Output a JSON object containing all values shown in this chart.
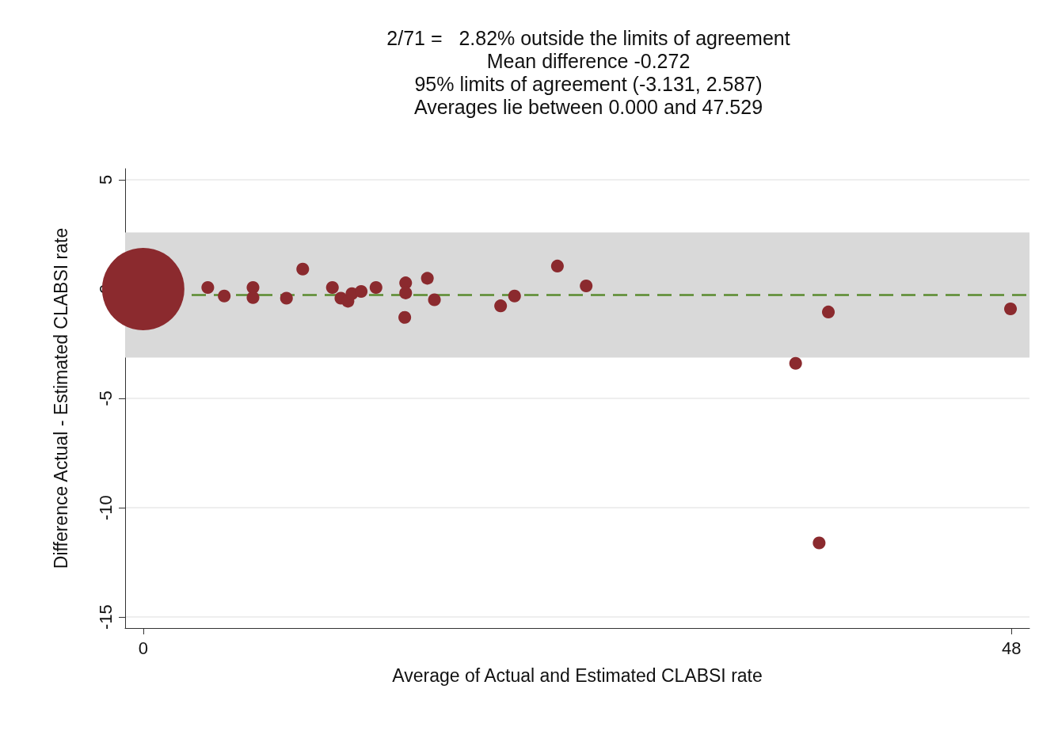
{
  "chart_data": {
    "type": "bubble",
    "title": "2/71 =   2.82% outside the limits of agreement\nMean difference -0.272\n95% limits of agreement (-3.131, 2.587)\nAverages lie between 0.000 and 47.529",
    "xlabel": "Average of Actual and Estimated CLABSI rate",
    "ylabel": "Difference Actual - Estimated CLABSI rate",
    "x": [
      0,
      3.57,
      4.48,
      6.07,
      6.07,
      7.92,
      8.82,
      10.46,
      10.93,
      11.32,
      11.54,
      12.05,
      12.87,
      14.51,
      14.51,
      14.46,
      15.71,
      16.1,
      19.76,
      20.53,
      22.9,
      24.49,
      36.07,
      37.88,
      37.37,
      47.95
    ],
    "series": [
      {
        "color": "#8b2a2e",
        "values": [
          0,
          0.07,
          -0.32,
          0.07,
          -0.39,
          -0.42,
          0.91,
          0.07,
          -0.42,
          -0.56,
          -0.21,
          -0.11,
          0.07,
          0.28,
          -0.18,
          -1.3,
          0.49,
          -0.49,
          -0.77,
          -0.32,
          1.05,
          0.14,
          -3.4,
          -1.05,
          -11.61,
          -0.91
        ],
        "sizes": [
          1,
          0.024,
          0.024,
          0.024,
          0.024,
          0.024,
          0.024,
          0.024,
          0.024,
          0.024,
          0.024,
          0.024,
          0.024,
          0.024,
          0.024,
          0.024,
          0.024,
          0.024,
          0.024,
          0.024,
          0.024,
          0.024,
          0.024,
          0.024,
          0.024,
          0.024
        ]
      }
    ],
    "xlim": [
      -1,
      49
    ],
    "xticks": [
      0,
      48
    ],
    "ylim": [
      -15.5,
      5.5
    ],
    "yticks": [
      -15,
      -10,
      -5,
      0,
      5
    ],
    "bands": [
      {
        "axis": "y",
        "from": -3.131,
        "to": 2.587,
        "color": "#d9d9d9"
      }
    ],
    "ref_lines": [
      {
        "axis": "y",
        "value": -0.272,
        "color": "#5a8a2f",
        "line_style": "dashed"
      }
    ],
    "grid": "y",
    "marker": "circle"
  }
}
